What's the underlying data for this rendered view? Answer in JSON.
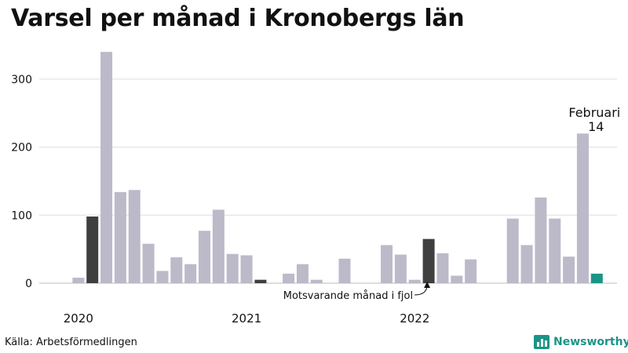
{
  "title": "Varsel per månad i Kronobergs län",
  "source": "Källa: Arbetsförmedlingen",
  "brand": {
    "label": "Newsworthy",
    "icon": "bar-chart-logo-icon"
  },
  "colors": {
    "bar": "#bcbac9",
    "highlight_prior": "#3f3f3f",
    "highlight_current": "#1a9487",
    "grid": "#dddddd",
    "text": "#111111"
  },
  "chart_data": {
    "type": "bar",
    "title": "Varsel per månad i Kronobergs län",
    "xlabel": "",
    "ylabel": "",
    "ylim": [
      0,
      320
    ],
    "yticks": [
      0,
      100,
      200,
      300
    ],
    "grid": true,
    "legend": "none",
    "x_year_labels": [
      {
        "label": "2020",
        "index": 1
      },
      {
        "label": "2021",
        "index": 13
      },
      {
        "label": "2022",
        "index": 25
      }
    ],
    "values": [
      null,
      8,
      98,
      340,
      134,
      137,
      58,
      18,
      38,
      28,
      77,
      108,
      43,
      41,
      5,
      null,
      14,
      28,
      5,
      null,
      36,
      null,
      null,
      56,
      42,
      5,
      65,
      44,
      11,
      35,
      null,
      null,
      95,
      56,
      126,
      95,
      39,
      220,
      14
    ],
    "highlight_prior_indices": [
      2,
      14,
      26
    ],
    "highlight_current_index": 38,
    "annotations": {
      "current_label": "Februari",
      "current_value": "14",
      "prior_label": "Motsvarande månad i fjol"
    }
  }
}
